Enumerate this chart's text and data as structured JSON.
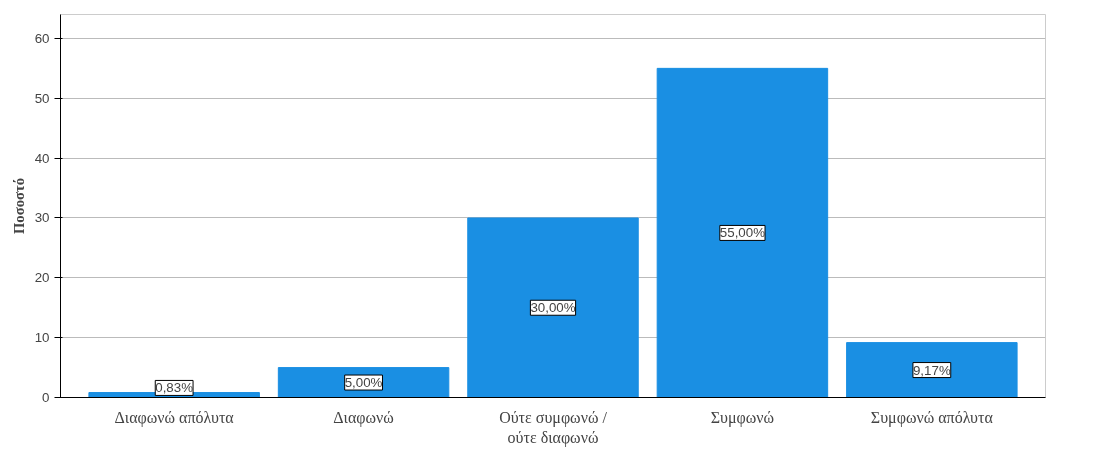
{
  "chart_data": {
    "type": "bar",
    "ylabel": "Ποσοστό",
    "categories": [
      "Διαφωνώ απόλυτα",
      "Διαφωνώ",
      "Ούτε συμφωνώ /\nούτε διαφωνώ",
      "Συμφωνώ",
      "Συμφωνώ απόλυτα"
    ],
    "values": [
      0.83,
      5,
      30,
      55,
      9.17
    ],
    "value_labels": [
      "0,83%",
      "5,00%",
      "30,00%",
      "55,00%",
      "9,17%"
    ],
    "color": "#1a8fe3",
    "ylim": [
      0,
      64
    ],
    "yticks": [
      0,
      10,
      20,
      30,
      40,
      50,
      60
    ],
    "grid": "y"
  }
}
